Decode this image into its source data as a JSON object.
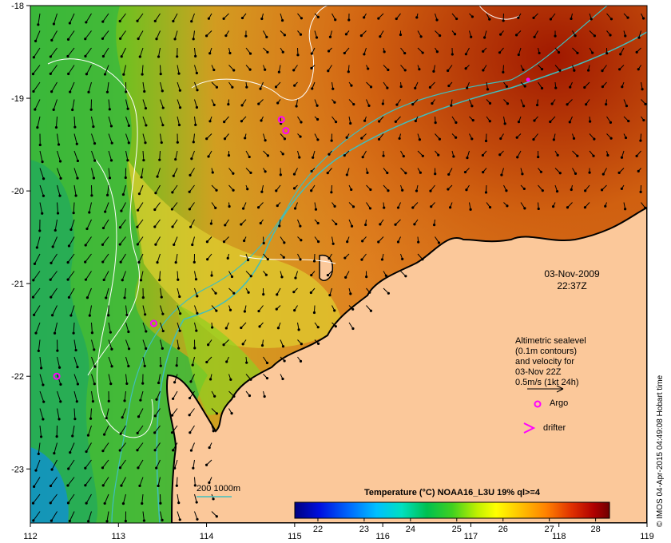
{
  "map": {
    "lat_ticks": [
      "-18",
      "-19",
      "-20",
      "-21",
      "-22",
      "-23"
    ],
    "lon_ticks": [
      "112",
      "113",
      "114",
      "115",
      "116",
      "117",
      "118",
      "119"
    ],
    "lat_range": [
      -23.5,
      -18.0
    ],
    "lon_range": [
      112.0,
      119.0
    ]
  },
  "timestamp": {
    "date": "03-Nov-2009",
    "time": "22:37Z"
  },
  "legend": {
    "line1": "Altimetric sealevel",
    "line2": "(0.1m contours)",
    "line3": "and velocity for",
    "line4": "03-Nov 22Z",
    "line5": "0.5m/s (1kt 24h)",
    "argo_label": "Argo",
    "drifter_label": "drifter",
    "argo_color": "#ff00ff",
    "drifter_color": "#ff00ff"
  },
  "bathymetry": {
    "label": "200  1000m",
    "color": "#3fbfbf"
  },
  "colorbar": {
    "title": "Temperature (°C) NOAA16_L3U 19% ql>=4",
    "ticks": [
      "22",
      "23",
      "24",
      "25",
      "26",
      "27",
      "28"
    ],
    "min": 21.5,
    "max": 28.3,
    "colors": [
      "#000080",
      "#0000ff",
      "#0080ff",
      "#00c0ff",
      "#00e0c0",
      "#00c060",
      "#20c020",
      "#80e000",
      "#ffff00",
      "#ffc000",
      "#ff8000",
      "#e04000",
      "#c00000",
      "#800000"
    ]
  },
  "credit": "© IMOS 04-Apr-2015 04:49:08 Hobart time",
  "argo_floats": [
    {
      "lon": 114.85,
      "lat": -19.23
    },
    {
      "lon": 114.9,
      "lat": -19.35
    },
    {
      "lon": 113.4,
      "lat": -21.43
    },
    {
      "lon": 112.3,
      "lat": -22.0
    }
  ],
  "drifters": [
    {
      "lon": 117.65,
      "lat": -18.8
    }
  ]
}
